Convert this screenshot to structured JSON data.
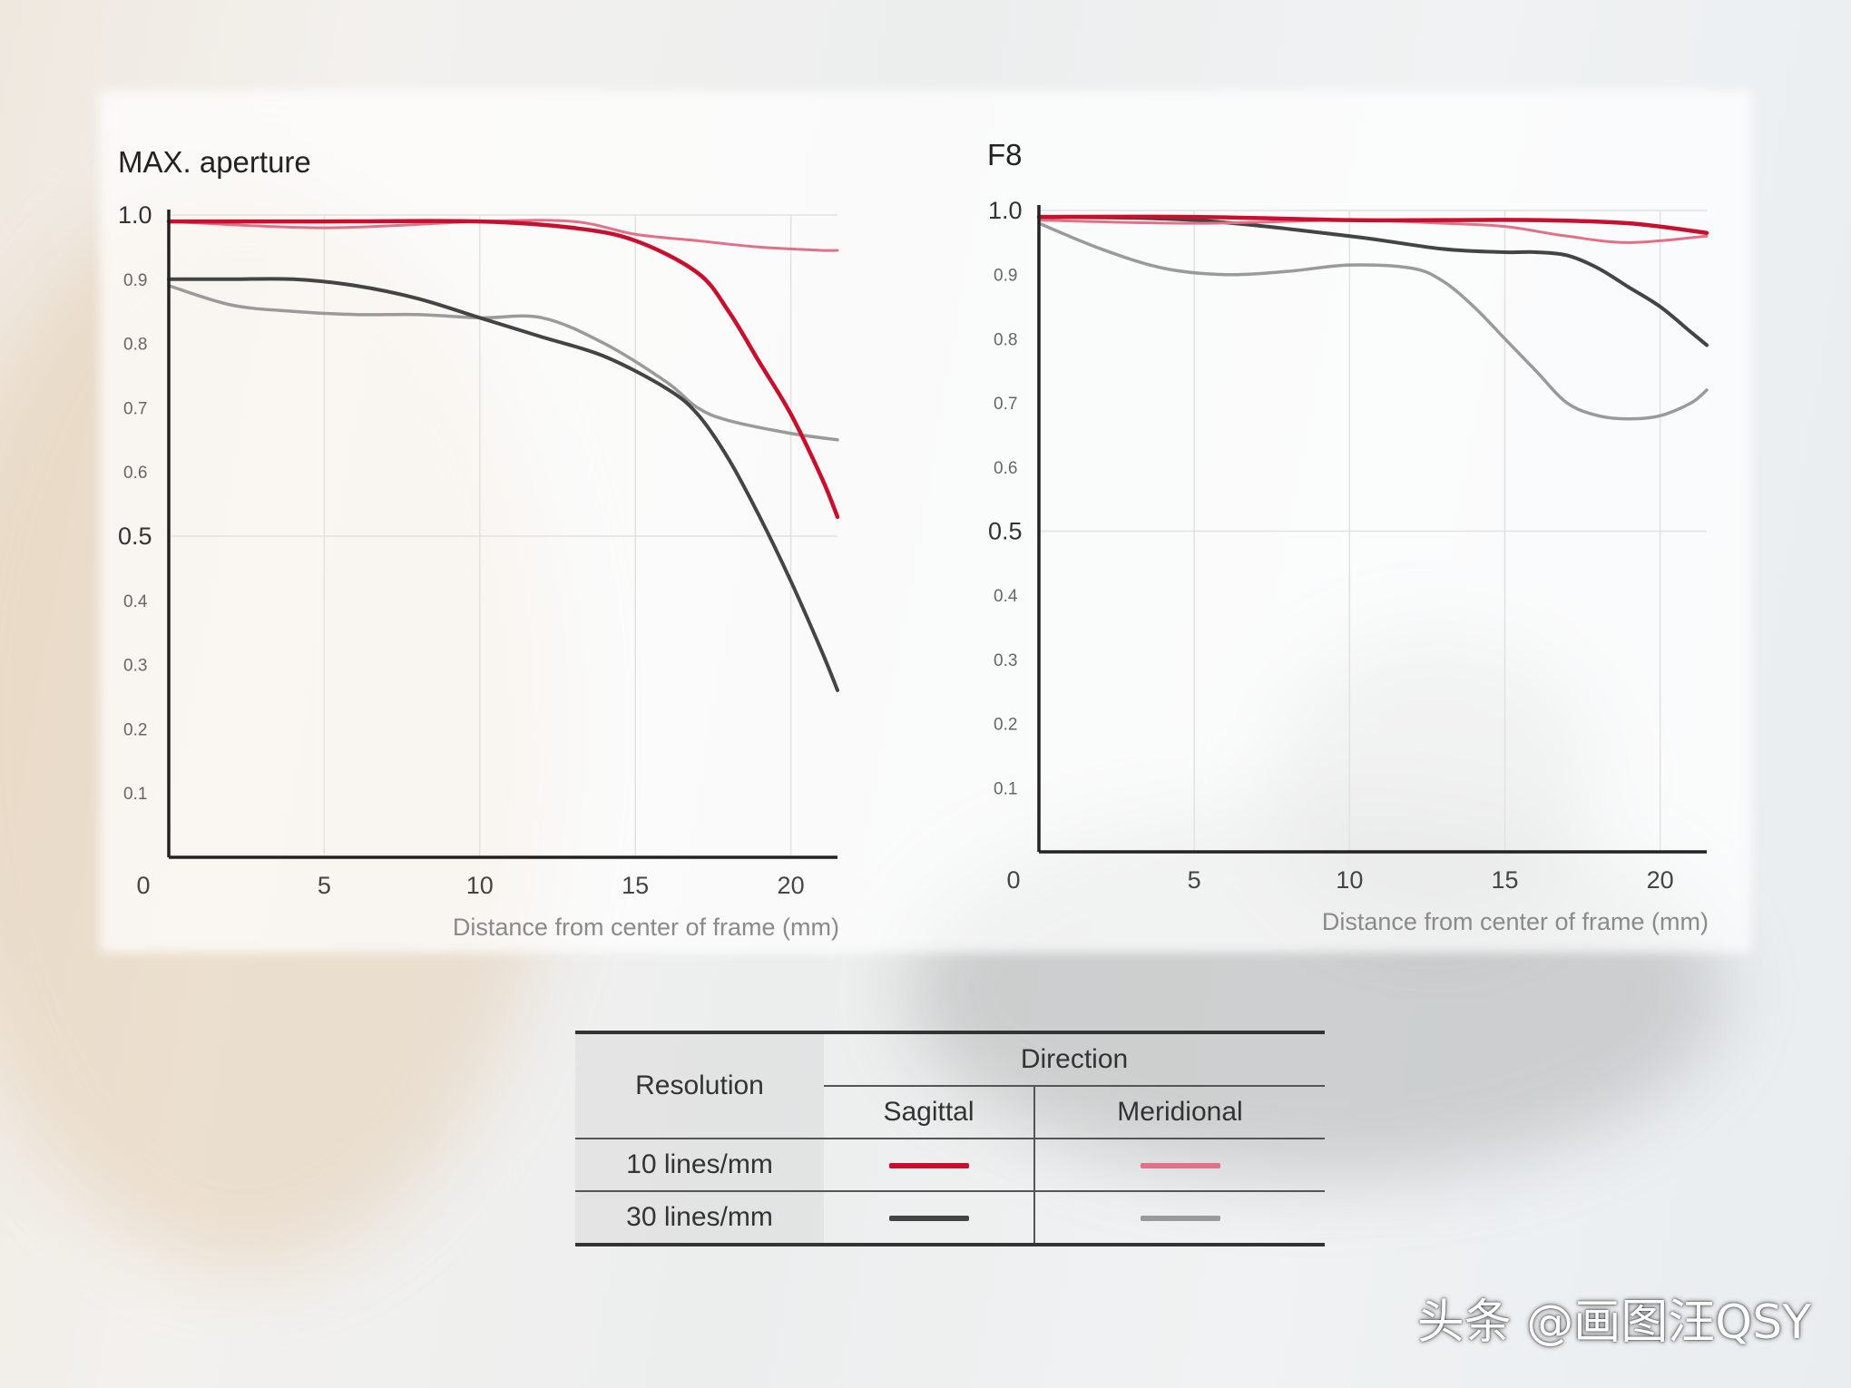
{
  "colors": {
    "sagittal_10": "#c8102e",
    "meridional_10": "#e27089",
    "sagittal_30": "#444444",
    "meridional_30": "#9a9a9a"
  },
  "chart_data": [
    {
      "type": "line",
      "title": "MAX. aperture",
      "xlabel": "Distance from center of frame (mm)",
      "ylabel": "",
      "xlim": [
        0,
        21.5
      ],
      "ylim": [
        0,
        1.0
      ],
      "x_ticks": [
        "0",
        "5",
        "10",
        "15",
        "20"
      ],
      "y_ticks_major": [
        "0.5",
        "1.0"
      ],
      "y_ticks_minor": [
        "0.1",
        "0.2",
        "0.3",
        "0.4",
        "0.6",
        "0.7",
        "0.8",
        "0.9"
      ],
      "grid": true,
      "series": [
        {
          "key": "s10",
          "x": [
            0,
            5,
            10,
            13,
            15,
            17,
            18,
            19,
            20,
            21,
            21.5
          ],
          "y": [
            0.99,
            0.99,
            0.99,
            0.98,
            0.96,
            0.91,
            0.85,
            0.77,
            0.69,
            0.59,
            0.53
          ]
        },
        {
          "key": "m10",
          "x": [
            0,
            5,
            10,
            13,
            15,
            17,
            19,
            21,
            21.5
          ],
          "y": [
            0.99,
            0.98,
            0.99,
            0.99,
            0.97,
            0.96,
            0.95,
            0.945,
            0.945
          ]
        },
        {
          "key": "s30",
          "x": [
            0,
            2,
            4,
            6,
            8,
            10,
            12,
            14,
            16,
            17,
            18,
            19,
            20,
            21,
            21.5
          ],
          "y": [
            0.9,
            0.9,
            0.9,
            0.89,
            0.87,
            0.84,
            0.81,
            0.78,
            0.73,
            0.69,
            0.62,
            0.53,
            0.43,
            0.32,
            0.26
          ]
        },
        {
          "key": "m30",
          "x": [
            0,
            2,
            4,
            6,
            8,
            10,
            12,
            14,
            16,
            17,
            18,
            20,
            21.5
          ],
          "y": [
            0.89,
            0.86,
            0.85,
            0.845,
            0.845,
            0.84,
            0.84,
            0.8,
            0.74,
            0.7,
            0.68,
            0.66,
            0.65
          ]
        }
      ]
    },
    {
      "type": "line",
      "title": "F8",
      "xlabel": "Distance from center of frame (mm)",
      "ylabel": "",
      "xlim": [
        0,
        21.5
      ],
      "ylim": [
        0,
        1.0
      ],
      "x_ticks": [
        "0",
        "5",
        "10",
        "15",
        "20"
      ],
      "y_ticks_major": [
        "0.5",
        "1.0"
      ],
      "y_ticks_minor": [
        "0.1",
        "0.2",
        "0.3",
        "0.4",
        "0.6",
        "0.7",
        "0.8",
        "0.9"
      ],
      "grid": true,
      "series": [
        {
          "key": "s10",
          "x": [
            0,
            5,
            10,
            13,
            16,
            19,
            21.5
          ],
          "y": [
            0.99,
            0.99,
            0.985,
            0.985,
            0.985,
            0.98,
            0.965
          ]
        },
        {
          "key": "m10",
          "x": [
            0,
            5,
            10,
            13,
            15,
            17,
            19,
            21.5
          ],
          "y": [
            0.985,
            0.98,
            0.985,
            0.98,
            0.975,
            0.96,
            0.95,
            0.96
          ]
        },
        {
          "key": "s30",
          "x": [
            0,
            5,
            10,
            13,
            15,
            16,
            17,
            18,
            19,
            20,
            21,
            21.5
          ],
          "y": [
            0.99,
            0.985,
            0.96,
            0.94,
            0.935,
            0.935,
            0.93,
            0.91,
            0.88,
            0.85,
            0.81,
            0.79
          ]
        },
        {
          "key": "m30",
          "x": [
            0,
            2,
            4,
            6,
            8,
            10,
            12,
            13,
            14,
            15,
            16,
            17,
            18,
            19,
            20,
            21,
            21.5
          ],
          "y": [
            0.98,
            0.94,
            0.91,
            0.9,
            0.905,
            0.915,
            0.91,
            0.89,
            0.85,
            0.8,
            0.75,
            0.7,
            0.68,
            0.675,
            0.68,
            0.7,
            0.72
          ]
        }
      ]
    }
  ],
  "legend": {
    "resolution_header": "Resolution",
    "direction_header": "Direction",
    "sagittal_header": "Sagittal",
    "meridional_header": "Meridional",
    "rows": [
      {
        "label": "10 lines/mm"
      },
      {
        "label": "30 lines/mm"
      }
    ]
  },
  "watermark": "头条 @画图汪QSY"
}
